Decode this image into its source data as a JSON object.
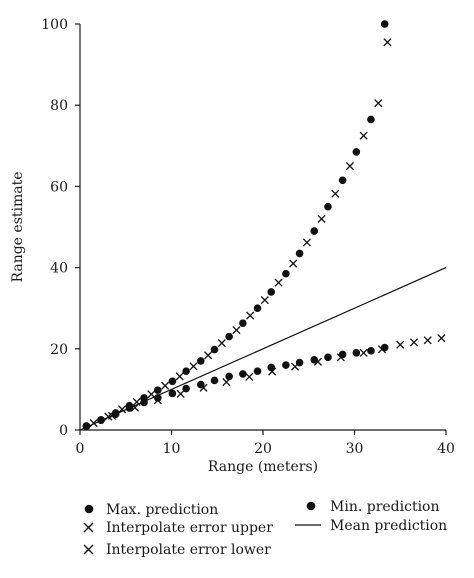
{
  "chart_data": {
    "type": "scatter",
    "title": "",
    "xlabel": "Range (meters)",
    "ylabel": "Range estimate",
    "xlim": [
      0,
      40
    ],
    "ylim": [
      0,
      100
    ],
    "xticks": [
      "0",
      "10",
      "20",
      "30",
      "40"
    ],
    "yticks": [
      "0",
      "20",
      "40",
      "60",
      "80",
      "100"
    ],
    "grid": false,
    "legend_position": "bottom",
    "series": [
      {
        "name": "Max. prediction",
        "marker": "dot",
        "x": [
          0.7,
          2.3,
          3.9,
          5.4,
          7.0,
          8.5,
          10.1,
          11.6,
          13.2,
          14.7,
          16.3,
          17.8,
          19.4,
          20.9,
          22.5,
          24.0,
          25.6,
          27.1,
          28.7,
          30.2,
          31.8,
          33.3
        ],
        "y": [
          1.0,
          2.5,
          4.2,
          6.0,
          7.9,
          9.8,
          12.0,
          14.5,
          17.0,
          19.8,
          23.0,
          26.3,
          30.0,
          34.0,
          38.5,
          43.5,
          49.0,
          55.0,
          61.5,
          68.5,
          76.5,
          100
        ]
      },
      {
        "name": "Interpolate error upper",
        "marker": "x",
        "x": [
          1.5,
          3.1,
          4.6,
          6.2,
          7.8,
          9.3,
          10.9,
          12.4,
          14.0,
          15.5,
          17.1,
          18.6,
          20.2,
          21.7,
          23.3,
          24.8,
          26.4,
          27.9,
          29.5,
          31.0,
          32.6,
          33.6
        ],
        "y": [
          1.7,
          3.3,
          5.1,
          6.9,
          8.8,
          10.9,
          13.2,
          15.7,
          18.4,
          21.4,
          24.6,
          28.2,
          32.0,
          36.3,
          41.0,
          46.2,
          52.0,
          58.2,
          65.0,
          72.5,
          80.5,
          95.5
        ]
      },
      {
        "name": "Min. prediction",
        "marker": "dot",
        "x": [
          0.7,
          2.3,
          3.9,
          5.4,
          7.0,
          8.5,
          10.1,
          11.6,
          13.2,
          14.7,
          16.3,
          17.8,
          19.4,
          20.9,
          22.5,
          24.0,
          25.6,
          27.1,
          28.7,
          30.2,
          31.8,
          33.3
        ],
        "y": [
          0.9,
          2.4,
          3.9,
          5.4,
          6.8,
          7.9,
          9.0,
          10.2,
          11.2,
          12.2,
          13.2,
          13.8,
          14.5,
          15.4,
          16.0,
          16.6,
          17.3,
          17.9,
          18.6,
          19.0,
          19.5,
          20.3
        ]
      },
      {
        "name": "Interpolate error lower",
        "marker": "x",
        "x": [
          3.5,
          6.0,
          8.5,
          11.0,
          13.5,
          16.0,
          18.5,
          21.0,
          23.5,
          26.0,
          28.5,
          31.0,
          33.0,
          35.0,
          36.5,
          38.0,
          39.5
        ],
        "y": [
          3.5,
          5.5,
          7.3,
          8.9,
          10.4,
          11.8,
          13.1,
          14.4,
          15.6,
          16.8,
          17.9,
          19.0,
          19.9,
          21.0,
          21.6,
          22.1,
          22.6
        ]
      },
      {
        "name": "Mean prediction",
        "marker": "line",
        "x": [
          0,
          40
        ],
        "y": [
          0,
          40
        ]
      }
    ]
  }
}
